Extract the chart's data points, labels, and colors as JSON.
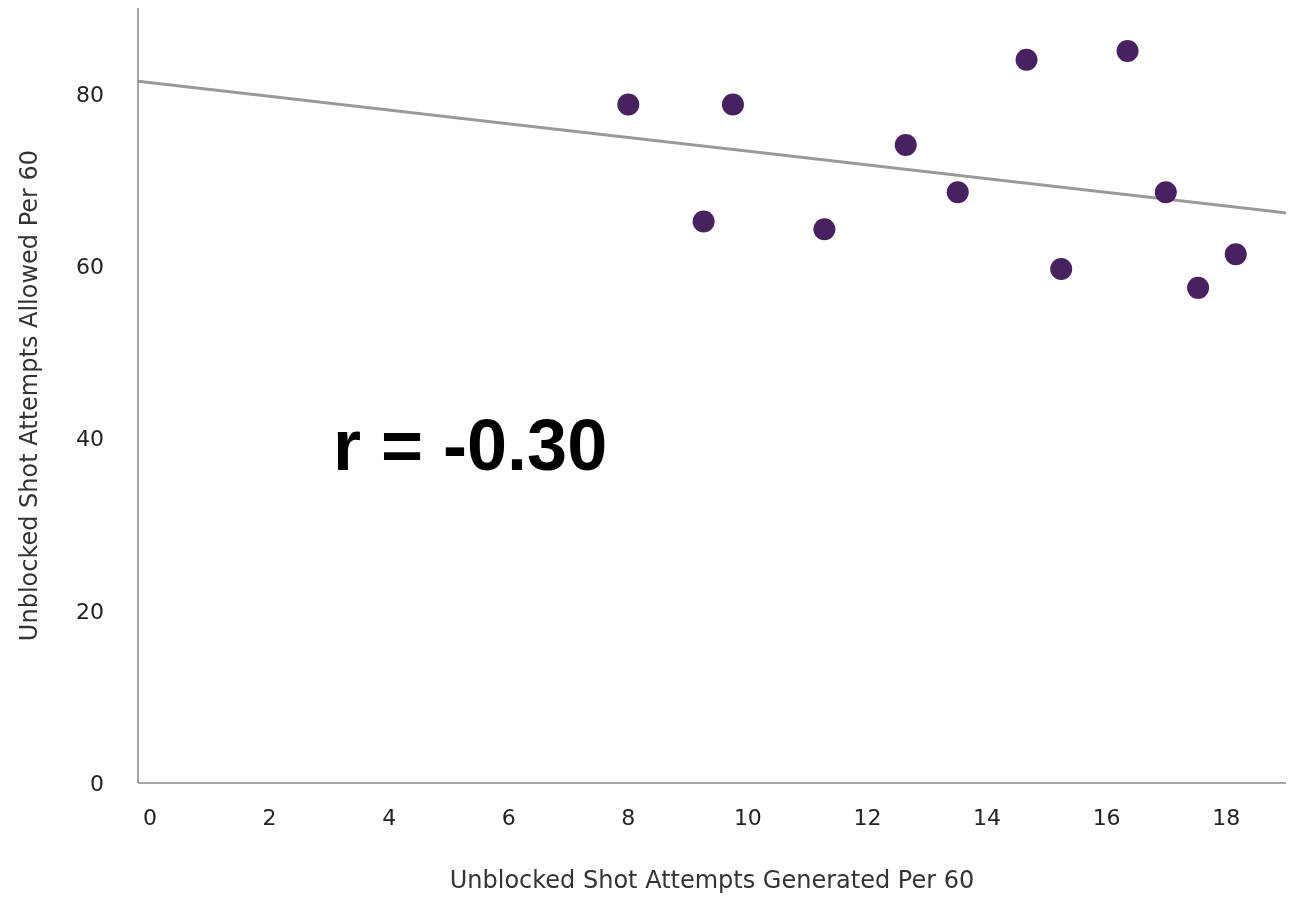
{
  "chart_data": {
    "type": "scatter",
    "xlabel": "Unblocked Shot Attempts Generated Per 60",
    "ylabel": "Unblocked Shot Attempts Allowed Per 60",
    "xlim": [
      -0.2,
      19
    ],
    "ylim": [
      0,
      90
    ],
    "xticks": [
      0,
      2,
      4,
      6,
      8,
      10,
      12,
      14,
      16,
      18
    ],
    "yticks": [
      0,
      20,
      40,
      60,
      80
    ],
    "marker": "circle",
    "annotations": [
      "r = -0.30"
    ],
    "series": [
      {
        "type": "scatter",
        "color": "#472160",
        "x": [
          8.0,
          9.26,
          9.75,
          11.28,
          12.64,
          13.51,
          14.66,
          15.24,
          16.35,
          16.99,
          17.53,
          18.16
        ],
        "values": [
          78.8,
          65.2,
          78.8,
          64.3,
          74.1,
          68.6,
          84.0,
          59.7,
          85.0,
          68.6,
          57.5,
          61.4
        ]
      },
      {
        "type": "line",
        "color": "#999999",
        "marker": "none",
        "x": [
          -0.2,
          19
        ],
        "values": [
          81.5,
          66.2
        ]
      }
    ]
  }
}
